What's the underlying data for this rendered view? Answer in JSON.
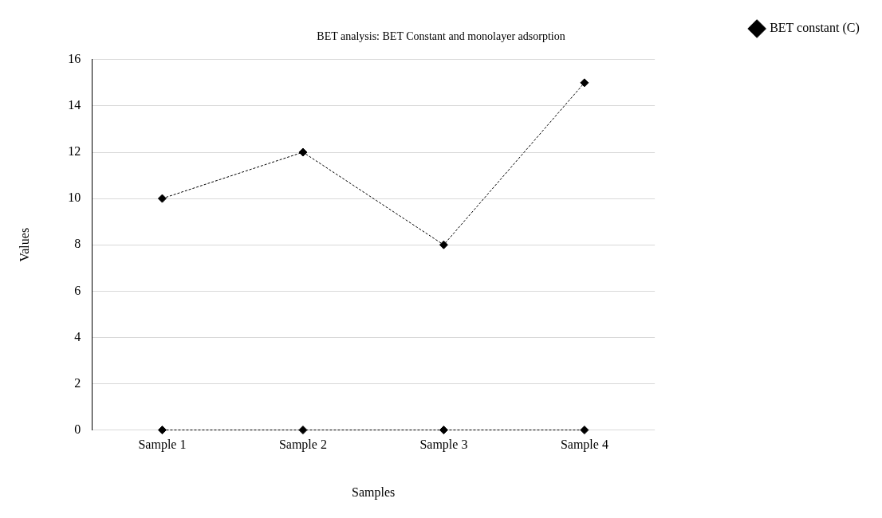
{
  "chart_data": {
    "type": "line",
    "title": "BET analysis: BET Constant and monolayer adsorption",
    "xlabel": "Samples",
    "ylabel": "Values",
    "categories": [
      "Sample 1",
      "Sample 2",
      "Sample 3",
      "Sample 4"
    ],
    "series": [
      {
        "name": "BET constant (C)",
        "color": "#000000",
        "values": [
          10,
          12,
          8,
          15
        ]
      },
      {
        "color": "#000000",
        "values": [
          0,
          0,
          0,
          0
        ]
      }
    ],
    "ylim": [
      0,
      16
    ],
    "yticks": [
      0,
      2,
      4,
      6,
      8,
      10,
      12,
      14,
      16
    ],
    "grid": "y",
    "legend": "top right",
    "marker": "diamond",
    "line_style": "dashed"
  }
}
